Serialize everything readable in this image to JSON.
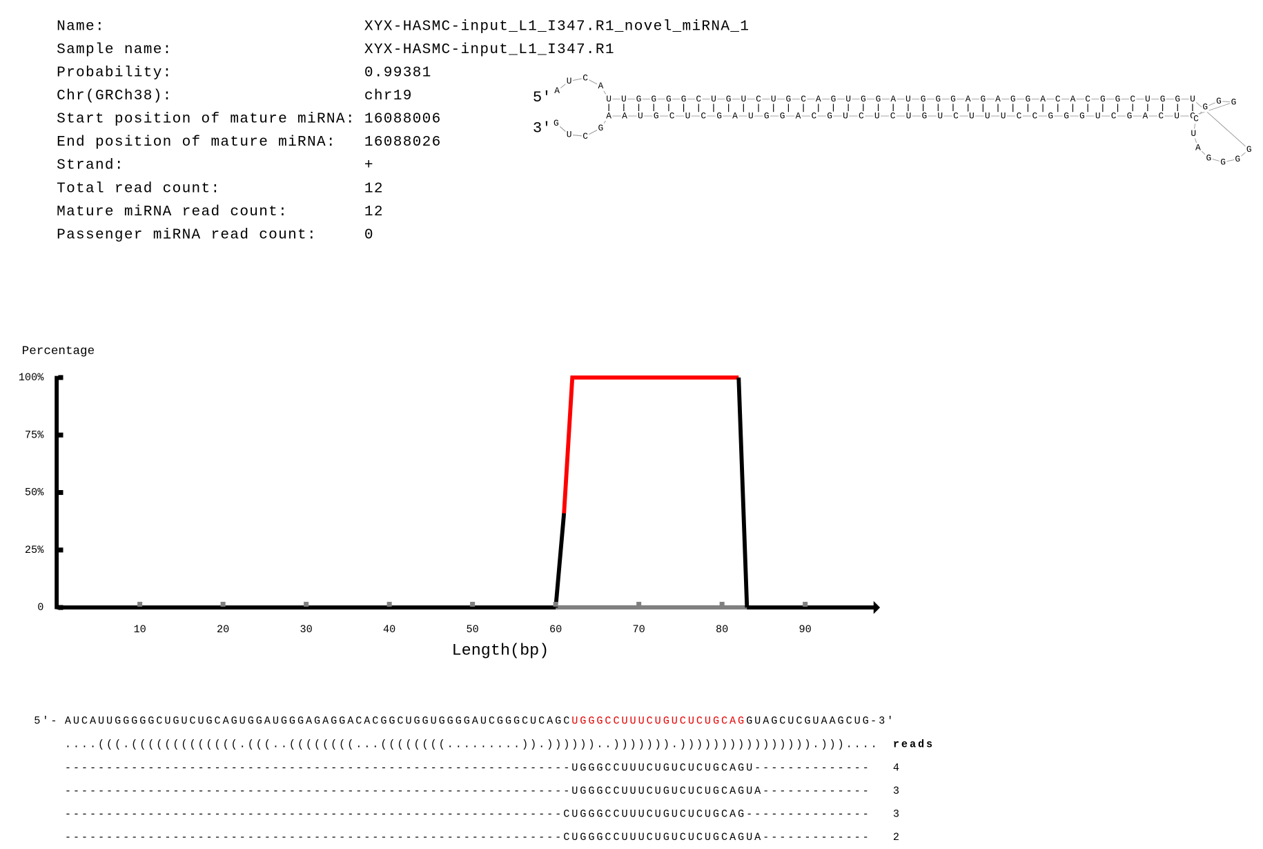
{
  "info": [
    [
      "Name:",
      "XYX-HASMC-input_L1_I347.R1_novel_miRNA_1"
    ],
    [
      "Sample name:",
      "XYX-HASMC-input_L1_I347.R1"
    ],
    [
      "Probability:",
      "0.99381"
    ],
    [
      "Chr(GRCh38):",
      "chr19"
    ],
    [
      "Start position of mature miRNA:",
      "16088006"
    ],
    [
      "End position of mature miRNA:",
      "16088026"
    ],
    [
      "Strand:",
      "+"
    ],
    [
      "Total read count:",
      "12"
    ],
    [
      "Mature miRNA read count:",
      "12"
    ],
    [
      "Passenger miRNA read count:",
      "0"
    ]
  ],
  "hairpin": {
    "label_5": "5'",
    "label_3": "3'",
    "loop_left_top": [
      "A",
      "U",
      "C",
      "A"
    ],
    "loop_left_bottom": [
      "G",
      "U",
      "C",
      "G"
    ],
    "top": [
      "U",
      "U",
      "G",
      "G",
      "G",
      "G",
      "C",
      "U",
      "G",
      "U",
      "C",
      "U",
      "G",
      "C",
      "A",
      "G",
      "U",
      "G",
      "G",
      "A",
      "U",
      "G",
      "G",
      "G",
      "A",
      "G",
      "A",
      "G",
      "G",
      "A",
      "C",
      "A",
      "C",
      "G",
      "G",
      "C",
      "U",
      "G",
      "G",
      "U"
    ],
    "bottom": [
      {
        "color": "#000000",
        "bases": [
          "A",
          "A",
          "U",
          "G",
          "C",
          "U",
          "C",
          "G",
          "A",
          "U",
          "G"
        ]
      },
      {
        "color": "#e60000",
        "bases": [
          "G",
          "A",
          "C",
          "G",
          "U",
          "C",
          "U",
          "C",
          "U",
          "G",
          "U",
          "C",
          "U",
          "U",
          "U",
          "C",
          "C",
          "G",
          "G",
          "G",
          "U"
        ]
      },
      {
        "color": "#000000",
        "bases": [
          "C",
          "G",
          "A",
          "C",
          "U",
          "C"
        ]
      }
    ],
    "loop_right": [
      "G",
      "G",
      "G",
      "G",
      "A",
      "U",
      "C",
      "G",
      "G",
      "G"
    ]
  },
  "chart_data": {
    "type": "line",
    "y_label": "Percentage",
    "x_label": "Length(bp)",
    "xlim": [
      0,
      99
    ],
    "ylim": [
      0,
      100
    ],
    "xticks": [
      10,
      20,
      30,
      40,
      50,
      60,
      70,
      80,
      90
    ],
    "yticks": [
      0,
      {
        "value": 25,
        "label": "25%"
      },
      {
        "value": 50,
        "label": "50%"
      },
      {
        "value": 75,
        "label": "75%"
      },
      {
        "value": 100,
        "label": "100%"
      }
    ],
    "series": [
      {
        "color": "#808080",
        "x": [
          60,
          83
        ],
        "values": [
          0,
          0
        ]
      },
      {
        "color": "#000000",
        "x": [
          60,
          61
        ],
        "values": [
          0,
          41
        ]
      },
      {
        "color": "#ff0000",
        "x": [
          61,
          62,
          82
        ],
        "values": [
          41,
          100,
          100
        ]
      },
      {
        "color": "#000000",
        "x": [
          82,
          83
        ],
        "values": [
          100,
          0
        ]
      }
    ]
  },
  "alignment": {
    "label_5": "5'-",
    "sequence": [
      {
        "color": "#000000",
        "text": "AUCAUUGGGGGCUGUCUGCAGUGGAUGGGAGAGGACACGGCUGGUGGGGAUCGGGCUCAGC"
      },
      {
        "color": "#e60000",
        "text": "UGGGCCUUUCUGUCUCUGCAG"
      },
      {
        "color": "#000000",
        "text": "GUAGCUCGUAAGCUG"
      }
    ],
    "label_3": "-3'",
    "structure": "....(((.(((((((((((((.(((..((((((((...((((((((.........)).))))))..))))))).)))))))))))))))).)))....",
    "reads_header": "reads",
    "reads": [
      [
        "-------------------------------------------------------------UGGGCCUUUCUGUCUCUGCAGU--------------",
        "4"
      ],
      [
        "-------------------------------------------------------------UGGGCCUUUCUGUCUCUGCAGUA-------------",
        "3"
      ],
      [
        "------------------------------------------------------------CUGGGCCUUUCUGUCUCUGCAG---------------",
        "3"
      ],
      [
        "------------------------------------------------------------CUGGGCCUUUCUGUCUCUGCAGUA-------------",
        "2"
      ]
    ]
  }
}
